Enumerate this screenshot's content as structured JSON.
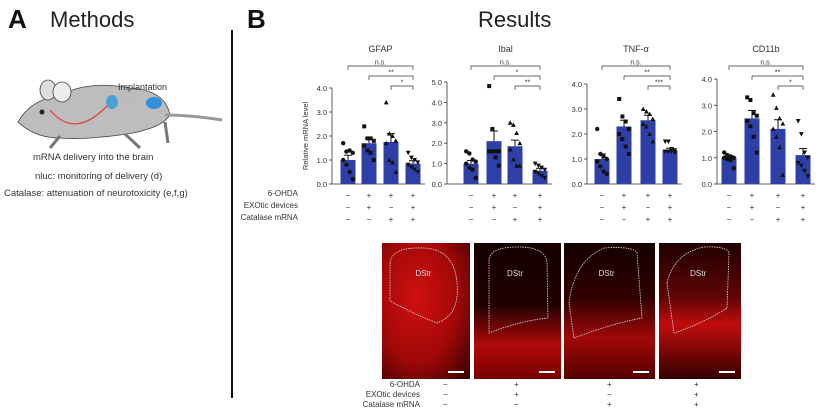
{
  "panel_a": {
    "letter": "A",
    "title": "Methods",
    "implantation": "Implantation",
    "caption1": "mRNA delivery into the brain",
    "caption2": "nluc: monitoring of delivery (d)",
    "caption3": "Catalase: attenuation of neurotoxicity (e,f,g)"
  },
  "panel_b": {
    "letter": "B",
    "title": "Results"
  },
  "conditions": {
    "labels": [
      "6-OHDA",
      "EXOtic devices",
      "Catalase mRNA"
    ],
    "signs": [
      [
        "−",
        "+",
        "+",
        "+"
      ],
      [
        "−",
        "+",
        "−",
        "+"
      ],
      [
        "−",
        "−",
        "+",
        "+"
      ]
    ]
  },
  "colors": {
    "bar": "#2e3fa8",
    "point": "#111111"
  },
  "chart_data": [
    {
      "type": "bar",
      "title": "GFAP",
      "ylabel": "Relative mRNA level",
      "ylim": [
        0,
        4
      ],
      "yticks": [
        "0.0",
        "1.0",
        "2.0",
        "3.0",
        "4.0"
      ],
      "values": [
        1.0,
        1.7,
        1.75,
        0.85
      ],
      "errors": [
        0.2,
        0.2,
        0.35,
        0.12
      ],
      "points": [
        [
          1.7,
          1.35,
          1.4,
          1.3,
          1.0,
          0.8,
          0.5,
          0.2
        ],
        [
          2.4,
          1.9,
          1.9,
          1.8,
          1.6,
          1.4,
          1.3,
          1.0
        ],
        [
          3.4,
          2.1,
          2.0,
          1.8,
          1.7,
          1.0,
          0.9,
          0.5
        ],
        [
          1.3,
          1.1,
          1.0,
          0.9,
          0.8,
          0.7,
          0.6,
          0.5
        ]
      ],
      "markers": [
        "circle",
        "square",
        "triangle",
        "triangle-down"
      ],
      "significance": [
        {
          "from": 1,
          "to": 4,
          "label": "n.s."
        },
        {
          "from": 2,
          "to": 4,
          "label": "**"
        },
        {
          "from": 3,
          "to": 4,
          "label": "*"
        }
      ]
    },
    {
      "type": "bar",
      "title": "Ibal",
      "ylabel": "",
      "ylim": [
        0,
        5
      ],
      "yticks": [
        "0.0",
        "1.0",
        "2.0",
        "3.0",
        "4.0",
        "5.0"
      ],
      "values": [
        1.0,
        2.1,
        1.85,
        0.65
      ],
      "errors": [
        0.15,
        0.5,
        0.3,
        0.12
      ],
      "points": [
        [
          1.6,
          1.5,
          1.2,
          1.1,
          1.0,
          0.8,
          0.7,
          0.3
        ],
        [
          4.8,
          2.7,
          1.6,
          1.6,
          1.6,
          1.6,
          1.3,
          0.9
        ],
        [
          3.0,
          2.9,
          2.5,
          2.0,
          1.7,
          1.2,
          0.9,
          0.9
        ],
        [
          1.0,
          0.9,
          0.8,
          0.7,
          0.6,
          0.5,
          0.4,
          0.3
        ]
      ],
      "markers": [
        "circle",
        "square",
        "triangle",
        "triangle-down"
      ],
      "significance": [
        {
          "from": 1,
          "to": 4,
          "label": "n.s."
        },
        {
          "from": 2,
          "to": 4,
          "label": "*"
        },
        {
          "from": 3,
          "to": 4,
          "label": "**"
        }
      ]
    },
    {
      "type": "bar",
      "title": "TNF-α",
      "ylabel": "",
      "ylim": [
        0,
        4
      ],
      "yticks": [
        "0.0",
        "1.0",
        "2.0",
        "3.0",
        "4.0"
      ],
      "values": [
        1.0,
        2.3,
        2.55,
        1.35
      ],
      "errors": [
        0.2,
        0.25,
        0.2,
        0.08
      ],
      "points": [
        [
          2.2,
          1.2,
          1.1,
          1.0,
          0.9,
          0.7,
          0.5,
          0.4
        ],
        [
          3.4,
          2.7,
          2.5,
          2.2,
          2.0,
          1.8,
          1.5,
          1.2
        ],
        [
          3.0,
          2.9,
          2.8,
          2.6,
          2.4,
          2.3,
          2.0,
          1.7
        ],
        [
          1.7,
          1.7,
          1.4,
          1.35,
          1.3,
          1.3,
          1.3,
          1.25
        ]
      ],
      "markers": [
        "circle",
        "square",
        "triangle",
        "triangle-down"
      ],
      "significance": [
        {
          "from": 1,
          "to": 4,
          "label": "n.s."
        },
        {
          "from": 2,
          "to": 4,
          "label": "**"
        },
        {
          "from": 3,
          "to": 4,
          "label": "***"
        }
      ]
    },
    {
      "type": "bar",
      "title": "CD11b",
      "ylabel": "",
      "ylim": [
        0,
        4
      ],
      "yticks": [
        "0.0",
        "1.0",
        "2.0",
        "3.0",
        "4.0"
      ],
      "values": [
        1.0,
        2.5,
        2.1,
        1.1
      ],
      "errors": [
        0.08,
        0.3,
        0.35,
        0.25
      ],
      "points": [
        [
          1.2,
          1.1,
          1.05,
          1.0,
          1.0,
          0.95,
          0.9,
          0.6
        ],
        [
          3.3,
          3.2,
          2.7,
          2.6,
          2.4,
          2.2,
          1.8,
          1.2
        ],
        [
          3.4,
          2.9,
          2.5,
          2.3,
          2.1,
          1.8,
          1.4,
          0.35
        ],
        [
          2.4,
          1.9,
          1.2,
          1.0,
          0.8,
          0.7,
          0.5,
          0.3
        ]
      ],
      "markers": [
        "circle",
        "square",
        "triangle",
        "triangle-down"
      ],
      "significance": [
        {
          "from": 1,
          "to": 4,
          "label": "n.s."
        },
        {
          "from": 2,
          "to": 4,
          "label": "**"
        },
        {
          "from": 3,
          "to": 4,
          "label": "*"
        }
      ]
    }
  ],
  "images": {
    "region_label": "DStr",
    "conditions": {
      "labels": [
        "6-OHDA",
        "EXOtic devices",
        "Catalase mRNA"
      ],
      "signs": [
        [
          "−",
          "+",
          "+",
          "+"
        ],
        [
          "−",
          "+",
          "−",
          "+"
        ],
        [
          "−",
          "−",
          "+",
          "+"
        ]
      ]
    }
  }
}
